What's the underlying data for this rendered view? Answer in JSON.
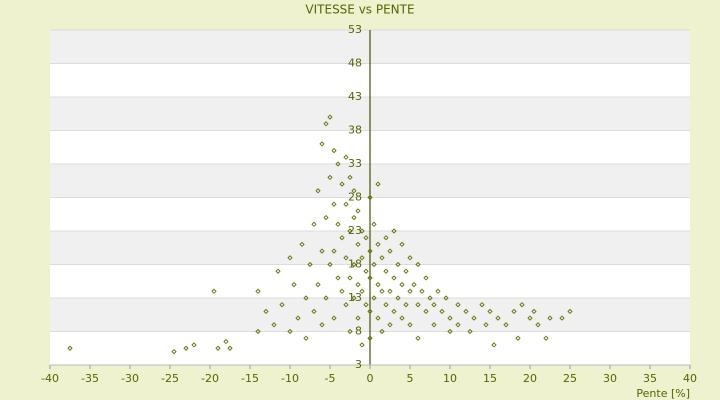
{
  "chart_data": {
    "type": "scatter",
    "title": "VITESSE vs PENTE",
    "x_label": "Pente [%]",
    "color": "#5f6e00",
    "x": [
      -37.5,
      -24.5,
      -23,
      -22,
      -19.5,
      -19,
      -18,
      -17.5,
      -14,
      -14,
      -13,
      -12,
      -11.5,
      -11,
      -10,
      -10,
      -9.5,
      -9,
      -8.5,
      -8,
      -8,
      -7.5,
      -7,
      -7,
      -6.5,
      -6.5,
      -6,
      -6,
      -6,
      -5.5,
      -5.5,
      -5.5,
      -5,
      -5,
      -5,
      -4.5,
      -4.5,
      -4.5,
      -4.5,
      -4,
      -4,
      -4,
      -3.5,
      -3.5,
      -3.5,
      -3,
      -3,
      -3,
      -3,
      -2.5,
      -2.5,
      -2.5,
      -2.5,
      -2,
      -2,
      -2,
      -2,
      -1.5,
      -1.5,
      -1.5,
      -1.5,
      -1,
      -1,
      -1,
      -1,
      -0.5,
      -0.5,
      -0.5,
      0,
      0,
      0,
      0,
      0,
      0.5,
      0.5,
      0.5,
      1,
      1,
      1,
      1,
      1.5,
      1.5,
      1.5,
      2,
      2,
      2,
      2.5,
      2.5,
      2.5,
      3,
      3,
      3,
      3.5,
      3.5,
      4,
      4,
      4,
      4.5,
      4.5,
      5,
      5,
      5,
      5.5,
      6,
      6,
      6,
      6.5,
      7,
      7,
      7.5,
      8,
      8,
      8.5,
      9,
      9.5,
      10,
      10,
      11,
      11,
      12,
      12.5,
      13,
      14,
      14.5,
      15,
      15.5,
      16,
      17,
      18,
      18.5,
      19,
      20,
      20.5,
      21,
      22,
      22.5,
      24,
      25
    ],
    "values": [
      5.5,
      5,
      5.5,
      6,
      14,
      5.5,
      6.5,
      5.5,
      14,
      8,
      11,
      9,
      17,
      12,
      8,
      19,
      15,
      10,
      21,
      13,
      7,
      18,
      24,
      11,
      29,
      15,
      36,
      20,
      9,
      39,
      25,
      13,
      40,
      31,
      18,
      35,
      27,
      20,
      10,
      33,
      24,
      16,
      30,
      22,
      14,
      34,
      27,
      19,
      12,
      31,
      23,
      16,
      8,
      29,
      25,
      18,
      13,
      26,
      21,
      15,
      10,
      23,
      19,
      14,
      6,
      22,
      17,
      12,
      28,
      20,
      16,
      11,
      7,
      24,
      18,
      13,
      30,
      21,
      15,
      10,
      19,
      14,
      8,
      22,
      17,
      12,
      20,
      14,
      9,
      23,
      16,
      11,
      18,
      13,
      21,
      15,
      10,
      17,
      12,
      19,
      14,
      9,
      15,
      18,
      12,
      7,
      14,
      16,
      11,
      13,
      12,
      9,
      14,
      11,
      13,
      10,
      8,
      12,
      9,
      11,
      8,
      10,
      12,
      9,
      11,
      6,
      10,
      9,
      11,
      7,
      12,
      10,
      11,
      9,
      7,
      10,
      10,
      11
    ],
    "xlim": [
      -40,
      40
    ],
    "xticks": [
      -40,
      -35,
      -30,
      -25,
      -20,
      -15,
      -10,
      -5,
      0,
      5,
      10,
      15,
      20,
      25,
      30,
      35,
      40
    ],
    "ylim": [
      3,
      53
    ],
    "yticks": [
      3,
      8,
      13,
      18,
      23,
      28,
      33,
      38,
      43,
      48,
      53
    ],
    "grid": true
  }
}
